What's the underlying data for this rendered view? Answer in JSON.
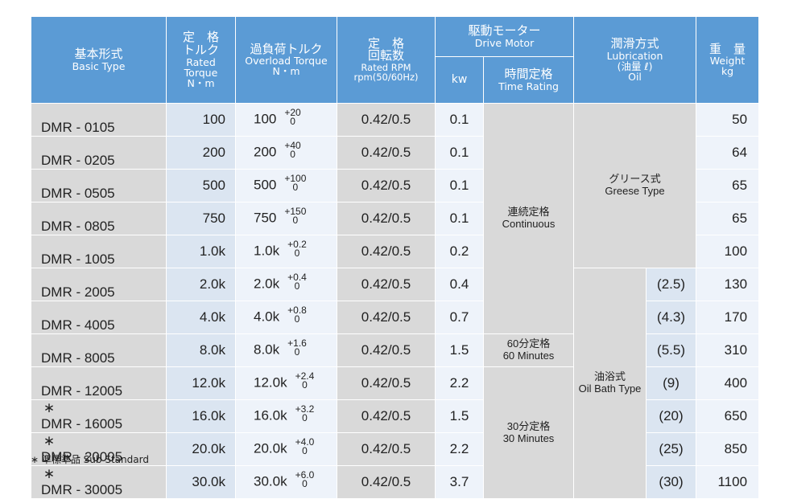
{
  "headers": {
    "basic_type": {
      "jp": "基本形式",
      "en": "Basic Type"
    },
    "rated_torque": {
      "jp": "定　格\nトルク",
      "en": "Rated\nTorque\nN・m"
    },
    "overload_torque": {
      "jp": "過負荷トルク",
      "en": "Overload Torque\nN・m"
    },
    "rated_rpm": {
      "jp": "定　格\n回転数",
      "en": "Rated RPM\nrpm(50/60Hz)"
    },
    "drive_motor": {
      "jp": "駆動モーター",
      "en": "Drive Motor"
    },
    "kw": "kw",
    "time_rating": {
      "jp": "時間定格",
      "en": "Time Rating"
    },
    "lubrication": {
      "jp": "潤滑方式",
      "en": "Lubrication\n(油量 ℓ)\nOil"
    },
    "weight": {
      "jp": "重　量",
      "en": "Weight\nkg"
    }
  },
  "rows": [
    {
      "star": "",
      "model": "DMR -   0105",
      "torque": "100",
      "ovl": "100",
      "ovl_up": "+20",
      "ovl_low": "0",
      "rpm": "0.42/0.5",
      "kw": "0.1",
      "oil": "",
      "weight": "50"
    },
    {
      "star": "",
      "model": "DMR -   0205",
      "torque": "200",
      "ovl": "200",
      "ovl_up": "+40",
      "ovl_low": "0",
      "rpm": "0.42/0.5",
      "kw": "0.1",
      "oil": "",
      "weight": "64"
    },
    {
      "star": "",
      "model": "DMR -   0505",
      "torque": "500",
      "ovl": "500",
      "ovl_up": "+100",
      "ovl_low": "0",
      "rpm": "0.42/0.5",
      "kw": "0.1",
      "oil": "",
      "weight": "65"
    },
    {
      "star": "",
      "model": "DMR -   0805",
      "torque": "750",
      "ovl": "750",
      "ovl_up": "+150",
      "ovl_low": "0",
      "rpm": "0.42/0.5",
      "kw": "0.1",
      "oil": "",
      "weight": "65"
    },
    {
      "star": "",
      "model": "DMR -   1005",
      "torque": "1.0k",
      "ovl": "1.0k",
      "ovl_up": "+0.2",
      "ovl_low": "0",
      "rpm": "0.42/0.5",
      "kw": "0.2",
      "oil": "",
      "weight": "100"
    },
    {
      "star": "",
      "model": "DMR -   2005",
      "torque": "2.0k",
      "ovl": "2.0k",
      "ovl_up": "+0.4",
      "ovl_low": "0",
      "rpm": "0.42/0.5",
      "kw": "0.4",
      "oil": "(2.5)",
      "weight": "130"
    },
    {
      "star": "",
      "model": "DMR -   4005",
      "torque": "4.0k",
      "ovl": "4.0k",
      "ovl_up": "+0.8",
      "ovl_low": "0",
      "rpm": "0.42/0.5",
      "kw": "0.7",
      "oil": "(4.3)",
      "weight": "170"
    },
    {
      "star": "",
      "model": "DMR -   8005",
      "torque": "8.0k",
      "ovl": "8.0k",
      "ovl_up": "+1.6",
      "ovl_low": "0",
      "rpm": "0.42/0.5",
      "kw": "1.5",
      "oil": "(5.5)",
      "weight": "310"
    },
    {
      "star": "",
      "model": "DMR - 12005",
      "torque": "12.0k",
      "ovl": "12.0k",
      "ovl_up": "+2.4",
      "ovl_low": "0",
      "rpm": "0.42/0.5",
      "kw": "2.2",
      "oil": "(9)",
      "weight": "400"
    },
    {
      "star": "∗",
      "model": "DMR - 16005",
      "torque": "16.0k",
      "ovl": "16.0k",
      "ovl_up": "+3.2",
      "ovl_low": "0",
      "rpm": "0.42/0.5",
      "kw": "1.5",
      "oil": "(20)",
      "weight": "650"
    },
    {
      "star": "∗",
      "model": "DMR - 20005",
      "torque": "20.0k",
      "ovl": "20.0k",
      "ovl_up": "+4.0",
      "ovl_low": "0",
      "rpm": "0.42/0.5",
      "kw": "2.2",
      "oil": "(25)",
      "weight": "850"
    },
    {
      "star": "∗",
      "model": "DMR - 30005",
      "torque": "30.0k",
      "ovl": "30.0k",
      "ovl_up": "+6.0",
      "ovl_low": "0",
      "rpm": "0.42/0.5",
      "kw": "3.7",
      "oil": "(30)",
      "weight": "1100"
    }
  ],
  "ratings": {
    "continuous": {
      "jp": "連続定格",
      "en": "Continuous"
    },
    "sixty": {
      "jp": "60分定格",
      "en": "60 Minutes"
    },
    "thirty": {
      "jp": "30分定格",
      "en": "30 Minutes"
    }
  },
  "lubrication": {
    "grease": {
      "jp": "グリース式",
      "en": "Greese Type"
    },
    "oilbath": {
      "jp": "油浴式",
      "en": "Oil Bath Type"
    }
  },
  "footnote": "∗ 準標準品 Sub Standard",
  "colors": {
    "header": "#5b9bd5",
    "gray": "#d9d9d9",
    "light_blue": "#dbe5f1",
    "pale_blue": "#eef3fa"
  }
}
